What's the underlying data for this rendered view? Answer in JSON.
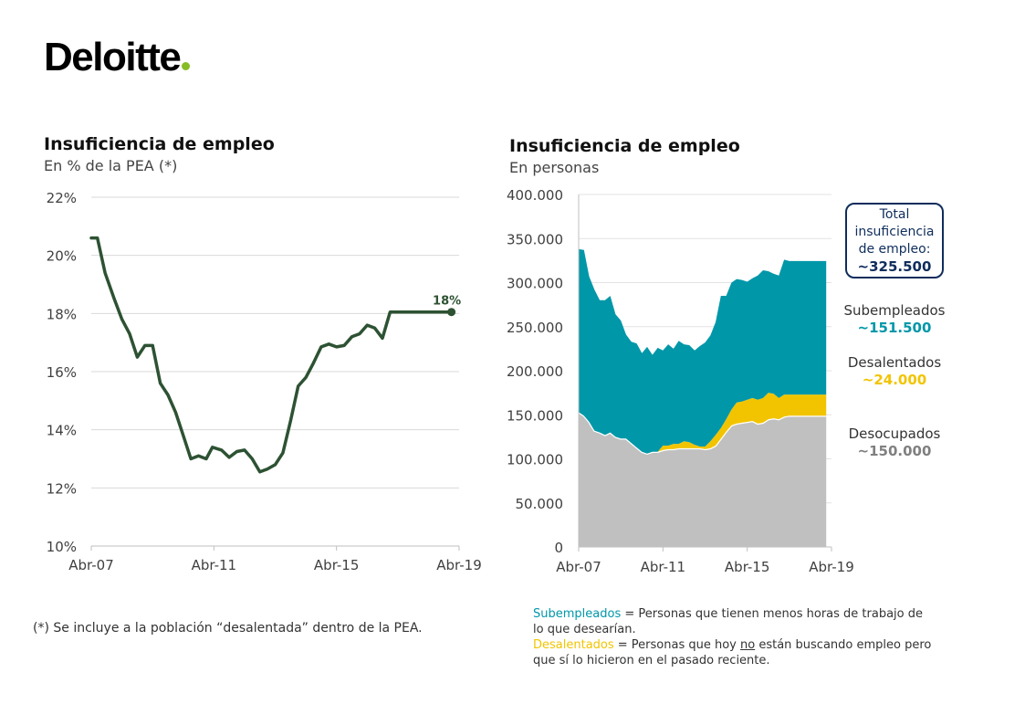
{
  "brand": {
    "name": "Deloitte",
    "dot_color": "#86bc25"
  },
  "footnote_left": "(*) Se incluye a la población “desalentada” dentro de la PEA.",
  "footnote_right": {
    "sub_term": "Subempleados",
    "sub_def": " = Personas que tienen menos horas de  trabajo de lo que desearían.",
    "des_term": "Desalentados",
    "des_def_pre": " = Personas que hoy ",
    "des_def_no": "no",
    "des_def_post": " están buscando empleo pero que sí lo hicieron en el pasado reciente."
  },
  "annotations": {
    "total_title": "Total insuficiencia de empleo:",
    "total_value": "~325.500",
    "sub_label": "Subempleados",
    "sub_value": "~151.500",
    "des_label": "Desalentados",
    "des_value": "~24.000",
    "deso_label": "Desocupados",
    "deso_value": "~150.000"
  },
  "chart_data": [
    {
      "type": "line",
      "title": "Insuficiencia de empleo",
      "subtitle": "En % de la PEA (*)",
      "x_ticks": [
        "Abr-07",
        "Abr-11",
        "Abr-15",
        "Abr-19"
      ],
      "y_ticks": [
        "10%",
        "12%",
        "14%",
        "16%",
        "18%",
        "20%",
        "22%"
      ],
      "ylim": [
        10,
        22
      ],
      "xlim": [
        2007.25,
        2019.25
      ],
      "grid": true,
      "color": "#2d5233",
      "end_label": "18%",
      "series": [
        {
          "x": [
            2007.25,
            2007.45,
            2007.7,
            2008.0,
            2008.25,
            2008.5,
            2008.75,
            2009.0,
            2009.25,
            2009.5,
            2009.75,
            2010.0,
            2010.25,
            2010.5,
            2010.75,
            2011.0,
            2011.2,
            2011.5,
            2011.75,
            2012.0,
            2012.25,
            2012.5,
            2012.75,
            2013.0,
            2013.25,
            2013.5,
            2013.75,
            2014.0,
            2014.25,
            2014.5,
            2014.75,
            2015.0,
            2015.25,
            2015.5,
            2015.75,
            2016.0,
            2016.25,
            2016.5,
            2016.75,
            2017.0,
            2017.25,
            2017.5,
            2017.75,
            2018.0,
            2018.25,
            2018.5,
            2018.75,
            2019.0,
            2019.25
          ],
          "values": [
            20.6,
            20.6,
            19.4,
            18.5,
            17.8,
            17.3,
            16.5,
            16.9,
            16.9,
            15.6,
            15.2,
            14.6,
            13.8,
            13.0,
            13.1,
            13.0,
            13.4,
            13.3,
            13.05,
            13.25,
            13.3,
            13.0,
            12.55,
            12.65,
            12.8,
            13.2,
            14.3,
            15.5,
            15.8,
            16.3,
            16.85,
            16.95,
            16.85,
            16.9,
            17.2,
            17.3,
            17.6,
            17.5,
            17.15,
            18.05,
            18.05,
            18.05,
            18.05,
            18.05,
            18.05,
            18.05,
            18.05,
            18.05,
            18.05
          ]
        }
      ]
    },
    {
      "type": "area",
      "stacked": true,
      "title": "Insuficiencia de empleo",
      "subtitle": "En personas",
      "x_ticks": [
        "Abr-07",
        "Abr-11",
        "Abr-15",
        "Abr-19"
      ],
      "y_ticks": [
        "0",
        "50.000",
        "100.000",
        "150.000",
        "200.000",
        "250.000",
        "300.000",
        "350.000",
        "400.000"
      ],
      "ylim": [
        0,
        400000
      ],
      "xlim": [
        2007.25,
        2019.25
      ],
      "grid": true,
      "x": [
        2007.25,
        2007.5,
        2007.75,
        2008.0,
        2008.25,
        2008.5,
        2008.75,
        2009.0,
        2009.25,
        2009.5,
        2009.75,
        2010.0,
        2010.25,
        2010.5,
        2010.75,
        2011.0,
        2011.25,
        2011.5,
        2011.75,
        2012.0,
        2012.25,
        2012.5,
        2012.75,
        2013.0,
        2013.25,
        2013.5,
        2013.75,
        2014.0,
        2014.25,
        2014.5,
        2014.75,
        2015.0,
        2015.25,
        2015.5,
        2015.75,
        2016.0,
        2016.25,
        2016.5,
        2016.75,
        2017.0,
        2017.25,
        2017.5,
        2017.75,
        2018.0,
        2018.25,
        2018.5,
        2018.75,
        2019.0,
        2019.25
      ],
      "series": [
        {
          "name": "Desocupados",
          "color": "#c0c0c0",
          "values": [
            153000,
            149000,
            142000,
            132000,
            130000,
            127000,
            130000,
            125000,
            123000,
            123000,
            118000,
            113000,
            108000,
            106000,
            108000,
            108000,
            110000,
            111000,
            111000,
            112000,
            112000,
            112000,
            112000,
            112000,
            111000,
            112000,
            115000,
            123000,
            131000,
            138000,
            140000,
            141000,
            142000,
            143000,
            140000,
            141000,
            145000,
            146000,
            145000,
            148000,
            149000,
            149000,
            149000,
            149000,
            149000,
            149000,
            149000,
            149000,
            149000
          ]
        },
        {
          "name": "Desalentados",
          "color": "#f2c400",
          "values": [
            0,
            0,
            0,
            0,
            0,
            0,
            0,
            0,
            0,
            0,
            0,
            0,
            0,
            0,
            0,
            0,
            5000,
            4000,
            6000,
            5000,
            8000,
            7000,
            4000,
            2000,
            3000,
            8000,
            12000,
            12000,
            14000,
            18000,
            24000,
            24000,
            25000,
            26000,
            27000,
            28000,
            30000,
            28000,
            24000,
            25000,
            24000,
            24000,
            24000,
            24000,
            24000,
            24000,
            24000,
            24000,
            24000
          ]
        },
        {
          "name": "Subempleados",
          "color": "#0097a9",
          "values": [
            185000,
            188000,
            165000,
            160000,
            150000,
            153000,
            155000,
            139000,
            134000,
            118000,
            115000,
            118000,
            112000,
            121000,
            110000,
            118000,
            108000,
            115000,
            108000,
            117000,
            110000,
            110000,
            107000,
            114000,
            118000,
            120000,
            128000,
            150000,
            140000,
            144000,
            140000,
            138000,
            134000,
            136000,
            141000,
            145000,
            138000,
            136000,
            139000,
            153000,
            151500,
            151500,
            151500,
            151500,
            151500,
            151500,
            151500,
            151500,
            151500
          ]
        }
      ]
    }
  ]
}
